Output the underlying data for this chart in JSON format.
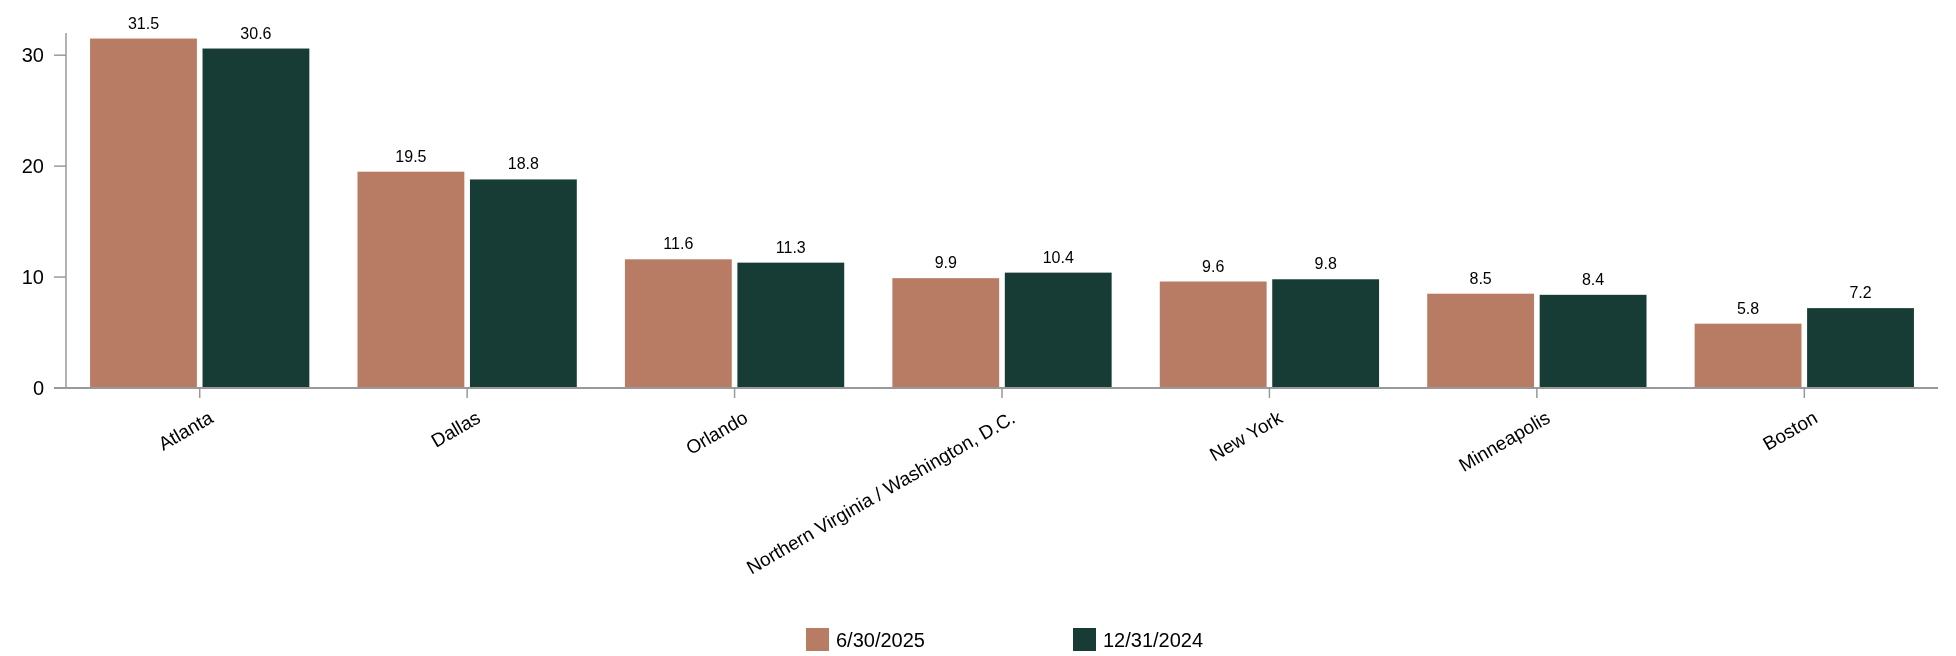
{
  "chart_data": {
    "type": "bar",
    "categories": [
      "Atlanta",
      "Dallas",
      "Orlando",
      "Northern Virginia / Washington, D.C.",
      "New York",
      "Minneapolis",
      "Boston"
    ],
    "series": [
      {
        "name": "6/30/2025",
        "color": "#b77c63",
        "values": [
          31.5,
          19.5,
          11.6,
          9.9,
          9.6,
          8.5,
          5.8
        ]
      },
      {
        "name": "12/31/2024",
        "color": "#173c35",
        "values": [
          30.6,
          18.8,
          11.3,
          10.4,
          9.8,
          8.4,
          7.2
        ]
      }
    ],
    "ylim": [
      0,
      32
    ],
    "yticks": [
      0,
      10,
      20,
      30
    ],
    "data_labels": true,
    "grid": false,
    "legend": "bottom"
  }
}
